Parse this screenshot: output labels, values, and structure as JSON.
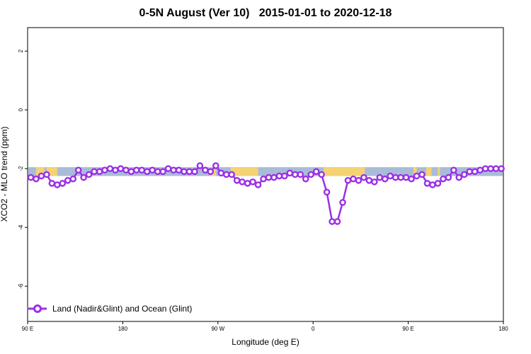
{
  "chart_data": {
    "type": "line",
    "title": "0-5N August (Ver 10)   2015-01-01 to 2020-12-18",
    "xlabel": "Longitude (deg E)",
    "ylabel": "XCO2 - MLO trend (ppm)",
    "x_ticks": [
      {
        "value": 90,
        "label": "90 E"
      },
      {
        "value": 180,
        "label": "180"
      },
      {
        "value": 270,
        "label": "90 W"
      },
      {
        "value": 360,
        "label": "0"
      },
      {
        "value": 450,
        "label": "90 E"
      },
      {
        "value": 540,
        "label": "180"
      }
    ],
    "xlim": [
      90,
      540
    ],
    "y_ticks": [
      2,
      0,
      -2,
      -4,
      -6
    ],
    "ylim": [
      -7.2,
      2.8
    ],
    "colors": {
      "series": "#9b30e6",
      "ocean_band": "#a8bcd8",
      "land_band": "#f5d372"
    },
    "band": {
      "y_top": -1.95,
      "y_bottom": -2.25,
      "land_ranges": [
        [
          98,
          106
        ],
        [
          108,
          118
        ],
        [
          263,
          268
        ],
        [
          282,
          308
        ],
        [
          370,
          409
        ],
        [
          455,
          458
        ],
        [
          467,
          472
        ],
        [
          478,
          480
        ]
      ]
    },
    "legend": {
      "position": "bottom-left",
      "label": "Land (Nadir&Glint) and Ocean (Glint)"
    },
    "series": [
      {
        "x": [
          93,
          98,
          103,
          108,
          113,
          118,
          123,
          128,
          133,
          138,
          143,
          148,
          153,
          158,
          163,
          168,
          173,
          178,
          183,
          188,
          193,
          198,
          203,
          208,
          213,
          218,
          223,
          228,
          233,
          238,
          243,
          248,
          253,
          258,
          263,
          268,
          273,
          278,
          283,
          288,
          293,
          298,
          303,
          308,
          313,
          318,
          323,
          328,
          333,
          338,
          343,
          348,
          353,
          358,
          363,
          368,
          373,
          378,
          383,
          388,
          393,
          398,
          403,
          408,
          413,
          418,
          423,
          428,
          433,
          438,
          443,
          448,
          453,
          458,
          463,
          468,
          473,
          478,
          483,
          488,
          493,
          498,
          503,
          508,
          513,
          518,
          523,
          528,
          533,
          538
        ],
        "y": [
          -2.3,
          -2.35,
          -2.25,
          -2.2,
          -2.5,
          -2.55,
          -2.5,
          -2.4,
          -2.35,
          -2.05,
          -2.3,
          -2.2,
          -2.1,
          -2.1,
          -2.05,
          -2.0,
          -2.05,
          -2.0,
          -2.05,
          -2.1,
          -2.05,
          -2.05,
          -2.1,
          -2.05,
          -2.1,
          -2.1,
          -2.0,
          -2.05,
          -2.05,
          -2.1,
          -2.1,
          -2.1,
          -1.9,
          -2.05,
          -2.1,
          -1.9,
          -2.15,
          -2.2,
          -2.2,
          -2.4,
          -2.45,
          -2.5,
          -2.45,
          -2.55,
          -2.35,
          -2.3,
          -2.3,
          -2.25,
          -2.25,
          -2.15,
          -2.2,
          -2.2,
          -2.35,
          -2.2,
          -2.1,
          -2.2,
          -2.8,
          -3.8,
          -3.8,
          -3.15,
          -2.4,
          -2.35,
          -2.4,
          -2.3,
          -2.4,
          -2.45,
          -2.3,
          -2.35,
          -2.25,
          -2.3,
          -2.3,
          -2.3,
          -2.35,
          -2.25,
          -2.2,
          -2.5,
          -2.55,
          -2.5,
          -2.35,
          -2.3,
          -2.05,
          -2.3,
          -2.2,
          -2.1,
          -2.1,
          -2.05,
          -2.0,
          -2.0,
          -2.0,
          -2.0
        ]
      }
    ]
  }
}
